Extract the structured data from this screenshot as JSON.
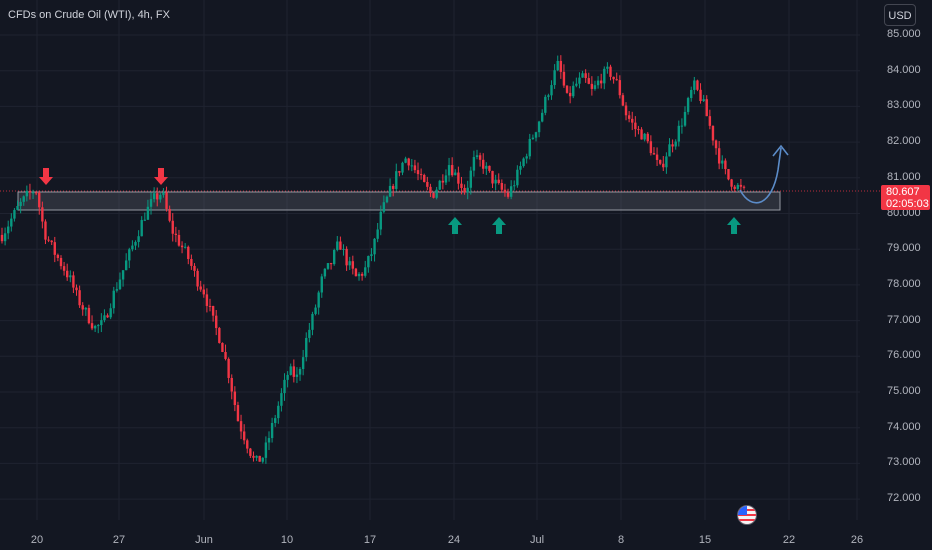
{
  "header": {
    "title": "CFDs on Crude Oil (WTI), 4h, FX"
  },
  "currency": {
    "label": "USD"
  },
  "price_tag": {
    "value": "80.607",
    "countdown": "02:05:03"
  },
  "colors": {
    "background": "#131722",
    "up": "#089981",
    "down": "#f23645",
    "zone": "#787b86",
    "projection": "#5b8cc9"
  },
  "chart_data": {
    "type": "candlestick",
    "title": "CFDs on Crude Oil (WTI), 4h, FX",
    "y_ticks": [
      "85.000",
      "84.000",
      "83.000",
      "82.000",
      "81.000",
      "80.000",
      "79.000",
      "78.000",
      "77.000",
      "76.000",
      "75.000",
      "74.000",
      "73.000",
      "72.000"
    ],
    "x_ticks": [
      "20",
      "27",
      "Jun",
      "10",
      "17",
      "24",
      "Jul",
      "8",
      "15",
      "22",
      "26"
    ],
    "last_price": 80.607,
    "support_zone": [
      80.1,
      80.6
    ],
    "path": [
      79.4,
      79.8,
      80.2,
      80.5,
      80.7,
      79.5,
      79.0,
      78.6,
      78.2,
      77.6,
      77.2,
      76.8,
      76.9,
      77.6,
      78.2,
      78.8,
      79.4,
      80.0,
      80.4,
      80.6,
      79.6,
      79.2,
      78.8,
      78.2,
      77.8,
      77.0,
      76.4,
      75.4,
      74.2,
      73.6,
      73.0,
      73.2,
      74.0,
      74.8,
      75.6,
      75.4,
      76.4,
      77.2,
      78.2,
      78.6,
      79.2,
      78.6,
      78.2,
      78.4,
      79.0,
      80.0,
      80.6,
      81.2,
      81.6,
      81.2,
      80.8,
      80.5,
      80.9,
      81.4,
      81.0,
      80.6,
      81.5,
      81.4,
      81.0,
      80.7,
      80.5,
      81.0,
      81.6,
      82.2,
      82.8,
      83.6,
      84.2,
      83.2,
      83.6,
      83.8,
      83.4,
      83.8,
      84.0,
      83.6,
      82.8,
      82.4,
      82.2,
      81.8,
      81.2,
      81.8,
      82.2,
      82.8,
      83.6,
      83.2,
      82.4,
      81.6,
      81.0,
      80.8,
      80.6
    ],
    "buy_arrows": [
      24,
      27.5,
      45
    ],
    "sell_arrows": [
      19.5,
      27.3
    ],
    "sell_arrow_dates": [
      2,
      9.3
    ]
  }
}
